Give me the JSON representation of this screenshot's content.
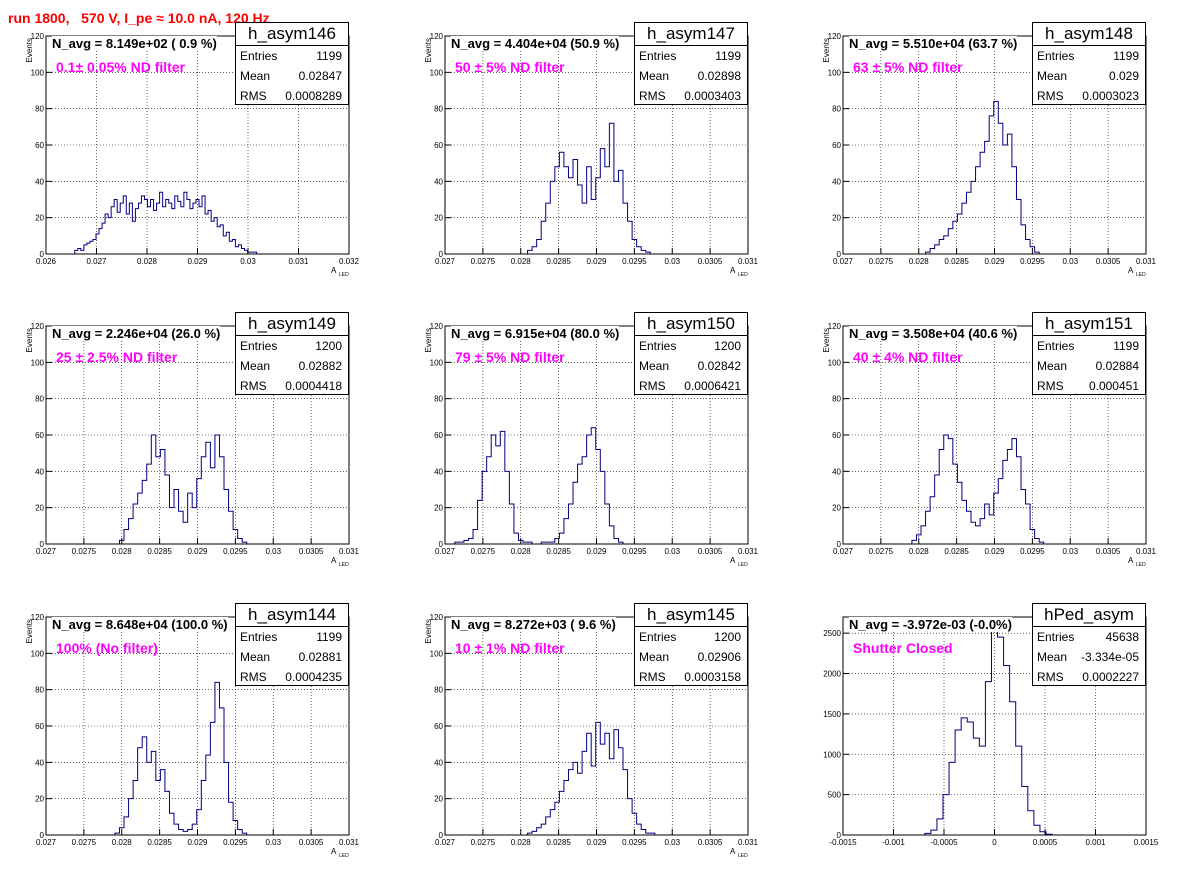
{
  "run_title": "run 1800,   570 V, I_pe ≈ 10.0 nA, 120 Hz",
  "stat_labels": {
    "entries": "Entries",
    "mean": "Mean",
    "rms": "RMS"
  },
  "chart_data": [
    {
      "type": "histogram",
      "name": "h_asym146",
      "navg": "N_avg = 8.149e+02 ( 0.9 %)",
      "filter": "0.1± 0.05% ND filter",
      "stats": {
        "entries": "1199",
        "mean": "0.02847",
        "rms": "0.0008289"
      },
      "xlim": [
        0.026,
        0.032
      ],
      "ylim": [
        0,
        120
      ],
      "xticks": [
        0.026,
        0.027,
        0.028,
        0.029,
        0.03,
        0.031,
        0.032
      ],
      "xticklabels": [
        "0.026",
        "0.027",
        "0.028",
        "0.029",
        "0.03",
        "0.031",
        "0.032"
      ],
      "yticks": [
        0,
        20,
        40,
        60,
        80,
        100,
        120
      ],
      "yticklabels": [
        "0",
        "20",
        "40",
        "60",
        "80",
        "100",
        "120"
      ],
      "ylabel": "Events",
      "xlabel": "A",
      "xlabel_sub": "LED",
      "centers": [
        0.0266,
        0.02666,
        0.02672,
        0.02678,
        0.02684,
        0.0269,
        0.02696,
        0.02702,
        0.02708,
        0.02714,
        0.0272,
        0.02726,
        0.02732,
        0.02738,
        0.02744,
        0.0275,
        0.02756,
        0.02762,
        0.02768,
        0.02774,
        0.0278,
        0.02786,
        0.02792,
        0.02798,
        0.02804,
        0.0281,
        0.02816,
        0.02822,
        0.02828,
        0.02834,
        0.0284,
        0.02846,
        0.02852,
        0.02858,
        0.02864,
        0.0287,
        0.02876,
        0.02882,
        0.02888,
        0.02894,
        0.029,
        0.02906,
        0.02912,
        0.02918,
        0.02924,
        0.0293,
        0.02936,
        0.02942,
        0.02948,
        0.02954,
        0.0296,
        0.02966,
        0.02972,
        0.02978,
        0.02984,
        0.0299,
        0.02996,
        0.03002,
        0.03008,
        0.03014
      ],
      "counts": [
        2,
        3,
        2,
        5,
        6,
        7,
        8,
        11,
        14,
        17,
        22,
        20,
        26,
        30,
        23,
        28,
        32,
        22,
        28,
        18,
        25,
        28,
        32,
        30,
        26,
        30,
        24,
        28,
        34,
        26,
        30,
        28,
        25,
        32,
        29,
        26,
        34,
        30,
        25,
        28,
        30,
        26,
        32,
        22,
        24,
        18,
        20,
        15,
        16,
        10,
        12,
        7,
        8,
        4,
        5,
        3,
        2,
        1,
        1,
        1
      ]
    },
    {
      "type": "histogram",
      "name": "h_asym147",
      "navg": "N_avg = 4.404e+04 (50.9 %)",
      "filter": "50 ± 5% ND filter",
      "stats": {
        "entries": "1199",
        "mean": "0.02898",
        "rms": "0.0003403"
      },
      "xlim": [
        0.027,
        0.031
      ],
      "ylim": [
        0,
        120
      ],
      "xticks": [
        0.027,
        0.0275,
        0.028,
        0.0285,
        0.029,
        0.0295,
        0.03,
        0.0305,
        0.031
      ],
      "xticklabels": [
        "0.027",
        "0.0275",
        "0.028",
        "0.0285",
        "0.029",
        "0.0295",
        "0.03",
        "0.0305",
        "0.031"
      ],
      "yticks": [
        0,
        20,
        40,
        60,
        80,
        100,
        120
      ],
      "yticklabels": [
        "0",
        "20",
        "40",
        "60",
        "80",
        "100",
        "120"
      ],
      "ylabel": "Events",
      "xlabel": "A",
      "xlabel_sub": "LED",
      "centers": [
        0.02812,
        0.02818,
        0.02824,
        0.0283,
        0.02836,
        0.02842,
        0.02848,
        0.02854,
        0.0286,
        0.02866,
        0.02872,
        0.02878,
        0.02884,
        0.0289,
        0.02896,
        0.02902,
        0.02908,
        0.02914,
        0.0292,
        0.02926,
        0.02932,
        0.02938,
        0.02944,
        0.0295,
        0.02956,
        0.02962,
        0.02968
      ],
      "counts": [
        2,
        4,
        8,
        18,
        28,
        40,
        48,
        56,
        48,
        42,
        52,
        38,
        28,
        48,
        30,
        42,
        58,
        48,
        72,
        40,
        46,
        28,
        18,
        8,
        4,
        2,
        1
      ]
    },
    {
      "type": "histogram",
      "name": "h_asym148",
      "navg": "N_avg = 5.510e+04 (63.7 %)",
      "filter": "63 ± 5% ND filter",
      "stats": {
        "entries": "1199",
        "mean": "0.029",
        "rms": "0.0003023"
      },
      "xlim": [
        0.027,
        0.031
      ],
      "ylim": [
        0,
        120
      ],
      "xticks": [
        0.027,
        0.0275,
        0.028,
        0.0285,
        0.029,
        0.0295,
        0.03,
        0.0305,
        0.031
      ],
      "xticklabels": [
        "0.027",
        "0.0275",
        "0.028",
        "0.0285",
        "0.029",
        "0.0295",
        "0.03",
        "0.0305",
        "0.031"
      ],
      "yticks": [
        0,
        20,
        40,
        60,
        80,
        100,
        120
      ],
      "yticklabels": [
        "0",
        "20",
        "40",
        "60",
        "80",
        "100",
        "120"
      ],
      "ylabel": "Events",
      "xlabel": "A",
      "xlabel_sub": "LED",
      "centers": [
        0.02812,
        0.02818,
        0.02824,
        0.0283,
        0.02836,
        0.02842,
        0.02848,
        0.02854,
        0.0286,
        0.02866,
        0.02872,
        0.02878,
        0.02884,
        0.0289,
        0.02896,
        0.02902,
        0.02908,
        0.02914,
        0.0292,
        0.02926,
        0.02932,
        0.02938,
        0.02944,
        0.0295,
        0.02956
      ],
      "counts": [
        1,
        3,
        5,
        8,
        10,
        14,
        18,
        22,
        28,
        34,
        40,
        48,
        56,
        62,
        76,
        84,
        72,
        60,
        66,
        48,
        30,
        16,
        8,
        4,
        1
      ]
    },
    {
      "type": "histogram",
      "name": "h_asym149",
      "navg": "N_avg = 2.246e+04 (26.0 %)",
      "filter": "25 ± 2.5% ND filter",
      "stats": {
        "entries": "1200",
        "mean": "0.02882",
        "rms": "0.0004418"
      },
      "xlim": [
        0.027,
        0.031
      ],
      "ylim": [
        0,
        120
      ],
      "xticks": [
        0.027,
        0.0275,
        0.028,
        0.0285,
        0.029,
        0.0295,
        0.03,
        0.0305,
        0.031
      ],
      "xticklabels": [
        "0.027",
        "0.0275",
        "0.028",
        "0.0285",
        "0.029",
        "0.0295",
        "0.03",
        "0.0305",
        "0.031"
      ],
      "yticks": [
        0,
        20,
        40,
        60,
        80,
        100,
        120
      ],
      "yticklabels": [
        "0",
        "20",
        "40",
        "60",
        "80",
        "100",
        "120"
      ],
      "ylabel": "Events",
      "xlabel": "A",
      "xlabel_sub": "LED",
      "centers": [
        0.028,
        0.02806,
        0.02812,
        0.02818,
        0.02824,
        0.0283,
        0.02836,
        0.02842,
        0.02848,
        0.02854,
        0.0286,
        0.02866,
        0.02872,
        0.02878,
        0.02884,
        0.0289,
        0.02896,
        0.02902,
        0.02908,
        0.02914,
        0.0292,
        0.02926,
        0.02932,
        0.02938,
        0.02944,
        0.0295,
        0.02956,
        0.02962
      ],
      "counts": [
        2,
        8,
        14,
        22,
        28,
        35,
        44,
        60,
        48,
        52,
        38,
        20,
        30,
        18,
        12,
        28,
        20,
        36,
        48,
        56,
        42,
        60,
        48,
        30,
        18,
        8,
        3,
        1
      ]
    },
    {
      "type": "histogram",
      "name": "h_asym150",
      "navg": "N_avg = 6.915e+04 (80.0 %)",
      "filter": "79 ± 5% ND filter",
      "stats": {
        "entries": "1200",
        "mean": "0.02842",
        "rms": "0.0006421"
      },
      "xlim": [
        0.027,
        0.031
      ],
      "ylim": [
        0,
        120
      ],
      "xticks": [
        0.027,
        0.0275,
        0.028,
        0.0285,
        0.029,
        0.0295,
        0.03,
        0.0305,
        0.031
      ],
      "xticklabels": [
        "0.027",
        "0.0275",
        "0.028",
        "0.0285",
        "0.029",
        "0.0295",
        "0.03",
        "0.0305",
        "0.031"
      ],
      "yticks": [
        0,
        20,
        40,
        60,
        80,
        100,
        120
      ],
      "yticklabels": [
        "0",
        "20",
        "40",
        "60",
        "80",
        "100",
        "120"
      ],
      "ylabel": "Events",
      "xlabel": "A",
      "xlabel_sub": "LED",
      "centers": [
        0.02716,
        0.02722,
        0.02728,
        0.02734,
        0.0274,
        0.02746,
        0.02752,
        0.02758,
        0.02764,
        0.0277,
        0.02776,
        0.02782,
        0.02788,
        0.02794,
        0.028,
        0.02806,
        0.02812,
        0.02818,
        0.02824,
        0.0283,
        0.02836,
        0.02842,
        0.02848,
        0.02854,
        0.0286,
        0.02866,
        0.02872,
        0.02878,
        0.02884,
        0.0289,
        0.02896,
        0.02902,
        0.02908,
        0.02914,
        0.0292,
        0.02926,
        0.02932
      ],
      "counts": [
        1,
        1,
        2,
        3,
        8,
        24,
        40,
        48,
        60,
        54,
        62,
        40,
        22,
        6,
        2,
        1,
        1,
        0,
        0,
        1,
        1,
        1,
        3,
        6,
        14,
        22,
        34,
        44,
        48,
        60,
        64,
        52,
        40,
        22,
        10,
        3,
        1
      ]
    },
    {
      "type": "histogram",
      "name": "h_asym151",
      "navg": "N_avg = 3.508e+04 (40.6 %)",
      "filter": "40 ± 4% ND filter",
      "stats": {
        "entries": "1199",
        "mean": "0.02884",
        "rms": "0.000451"
      },
      "xlim": [
        0.027,
        0.031
      ],
      "ylim": [
        0,
        120
      ],
      "xticks": [
        0.027,
        0.0275,
        0.028,
        0.0285,
        0.029,
        0.0295,
        0.03,
        0.0305,
        0.031
      ],
      "xticklabels": [
        "0.027",
        "0.0275",
        "0.028",
        "0.0285",
        "0.029",
        "0.0295",
        "0.03",
        "0.0305",
        "0.031"
      ],
      "yticks": [
        0,
        20,
        40,
        60,
        80,
        100,
        120
      ],
      "yticklabels": [
        "0",
        "20",
        "40",
        "60",
        "80",
        "100",
        "120"
      ],
      "ylabel": "Events",
      "xlabel": "A",
      "xlabel_sub": "LED",
      "centers": [
        0.02794,
        0.028,
        0.02806,
        0.02812,
        0.02818,
        0.02824,
        0.0283,
        0.02836,
        0.02842,
        0.02848,
        0.02854,
        0.0286,
        0.02866,
        0.02872,
        0.02878,
        0.02884,
        0.0289,
        0.02896,
        0.02902,
        0.02908,
        0.02914,
        0.0292,
        0.02926,
        0.02932,
        0.02938,
        0.02944,
        0.0295,
        0.02956,
        0.02962
      ],
      "counts": [
        2,
        5,
        10,
        18,
        26,
        38,
        52,
        60,
        58,
        44,
        34,
        24,
        18,
        12,
        10,
        14,
        22,
        16,
        28,
        36,
        46,
        52,
        58,
        48,
        30,
        22,
        8,
        3,
        1
      ]
    },
    {
      "type": "histogram",
      "name": "h_asym144",
      "navg": "N_avg = 8.648e+04 (100.0 %)",
      "filter": "100% (No filter)",
      "stats": {
        "entries": "1199",
        "mean": "0.02881",
        "rms": "0.0004235"
      },
      "xlim": [
        0.027,
        0.031
      ],
      "ylim": [
        0,
        120
      ],
      "xticks": [
        0.027,
        0.0275,
        0.028,
        0.0285,
        0.029,
        0.0295,
        0.03,
        0.0305,
        0.031
      ],
      "xticklabels": [
        "0.027",
        "0.0275",
        "0.028",
        "0.0285",
        "0.029",
        "0.0295",
        "0.03",
        "0.0305",
        "0.031"
      ],
      "yticks": [
        0,
        20,
        40,
        60,
        80,
        100,
        120
      ],
      "yticklabels": [
        "0",
        "20",
        "40",
        "60",
        "80",
        "100",
        "120"
      ],
      "ylabel": "Events",
      "xlabel": "A",
      "xlabel_sub": "LED",
      "centers": [
        0.02794,
        0.028,
        0.02806,
        0.02812,
        0.02818,
        0.02824,
        0.0283,
        0.02836,
        0.02842,
        0.02848,
        0.02854,
        0.0286,
        0.02866,
        0.02872,
        0.02878,
        0.02884,
        0.0289,
        0.02896,
        0.02902,
        0.02908,
        0.02914,
        0.0292,
        0.02926,
        0.02932,
        0.02938,
        0.02944,
        0.0295,
        0.02956,
        0.02962
      ],
      "counts": [
        1,
        4,
        10,
        20,
        30,
        48,
        54,
        40,
        46,
        30,
        36,
        24,
        12,
        6,
        3,
        2,
        3,
        6,
        14,
        30,
        44,
        62,
        84,
        70,
        40,
        18,
        8,
        3,
        1
      ]
    },
    {
      "type": "histogram",
      "name": "h_asym145",
      "navg": "N_avg = 8.272e+03 ( 9.6 %)",
      "filter": "10 ± 1% ND filter",
      "stats": {
        "entries": "1200",
        "mean": "0.02906",
        "rms": "0.0003158"
      },
      "xlim": [
        0.027,
        0.031
      ],
      "ylim": [
        0,
        120
      ],
      "xticks": [
        0.027,
        0.0275,
        0.028,
        0.0285,
        0.029,
        0.0295,
        0.03,
        0.0305,
        0.031
      ],
      "xticklabels": [
        "0.027",
        "0.0275",
        "0.028",
        "0.0285",
        "0.029",
        "0.0295",
        "0.03",
        "0.0305",
        "0.031"
      ],
      "yticks": [
        0,
        20,
        40,
        60,
        80,
        100,
        120
      ],
      "yticklabels": [
        "0",
        "20",
        "40",
        "60",
        "80",
        "100",
        "120"
      ],
      "ylabel": "Events",
      "xlabel": "A",
      "xlabel_sub": "LED",
      "centers": [
        0.02812,
        0.02818,
        0.02824,
        0.0283,
        0.02836,
        0.02842,
        0.02848,
        0.02854,
        0.0286,
        0.02866,
        0.02872,
        0.02878,
        0.02884,
        0.0289,
        0.02896,
        0.02902,
        0.02908,
        0.02914,
        0.0292,
        0.02926,
        0.02932,
        0.02938,
        0.02944,
        0.0295,
        0.02956,
        0.02962,
        0.02968,
        0.02974
      ],
      "counts": [
        1,
        2,
        4,
        6,
        10,
        14,
        18,
        24,
        30,
        36,
        40,
        34,
        46,
        56,
        38,
        62,
        50,
        56,
        42,
        58,
        48,
        36,
        20,
        12,
        6,
        3,
        1,
        1
      ]
    },
    {
      "type": "histogram",
      "name": "hPed_asym",
      "navg": "N_avg = -3.972e-03 (-0.0%)",
      "filter": "Shutter Closed",
      "stats": {
        "entries": "45638",
        "mean": "-3.334e-05",
        "rms": "0.0002227"
      },
      "xlim": [
        -0.0015,
        0.0015
      ],
      "ylim": [
        0,
        2700
      ],
      "xticks": [
        -0.0015,
        -0.001,
        -0.0005,
        0,
        0.0005,
        0.001,
        0.0015
      ],
      "xticklabels": [
        "-0.0015",
        "-0.001",
        "-0.0005",
        "0",
        "0.0005",
        "0.001",
        "0.0015"
      ],
      "yticks": [
        0,
        500,
        1000,
        1500,
        2000,
        2500
      ],
      "yticklabels": [
        "0",
        "500",
        "1000",
        "1500",
        "2000",
        "2500"
      ],
      "ylabel": "",
      "xlabel": "",
      "xlabel_sub": "",
      "centers": [
        -0.00066,
        -0.0006,
        -0.00054,
        -0.00048,
        -0.00042,
        -0.00036,
        -0.0003,
        -0.00024,
        -0.00018,
        -0.00012,
        -6e-05,
        0,
        6e-05,
        0.00012,
        0.00018,
        0.00024,
        0.0003,
        0.00036,
        0.00042,
        0.00048,
        0.00054
      ],
      "counts": [
        20,
        60,
        200,
        500,
        900,
        1300,
        1450,
        1400,
        1200,
        1100,
        1900,
        2550,
        2450,
        2100,
        1650,
        1100,
        600,
        300,
        120,
        40,
        10
      ]
    }
  ]
}
